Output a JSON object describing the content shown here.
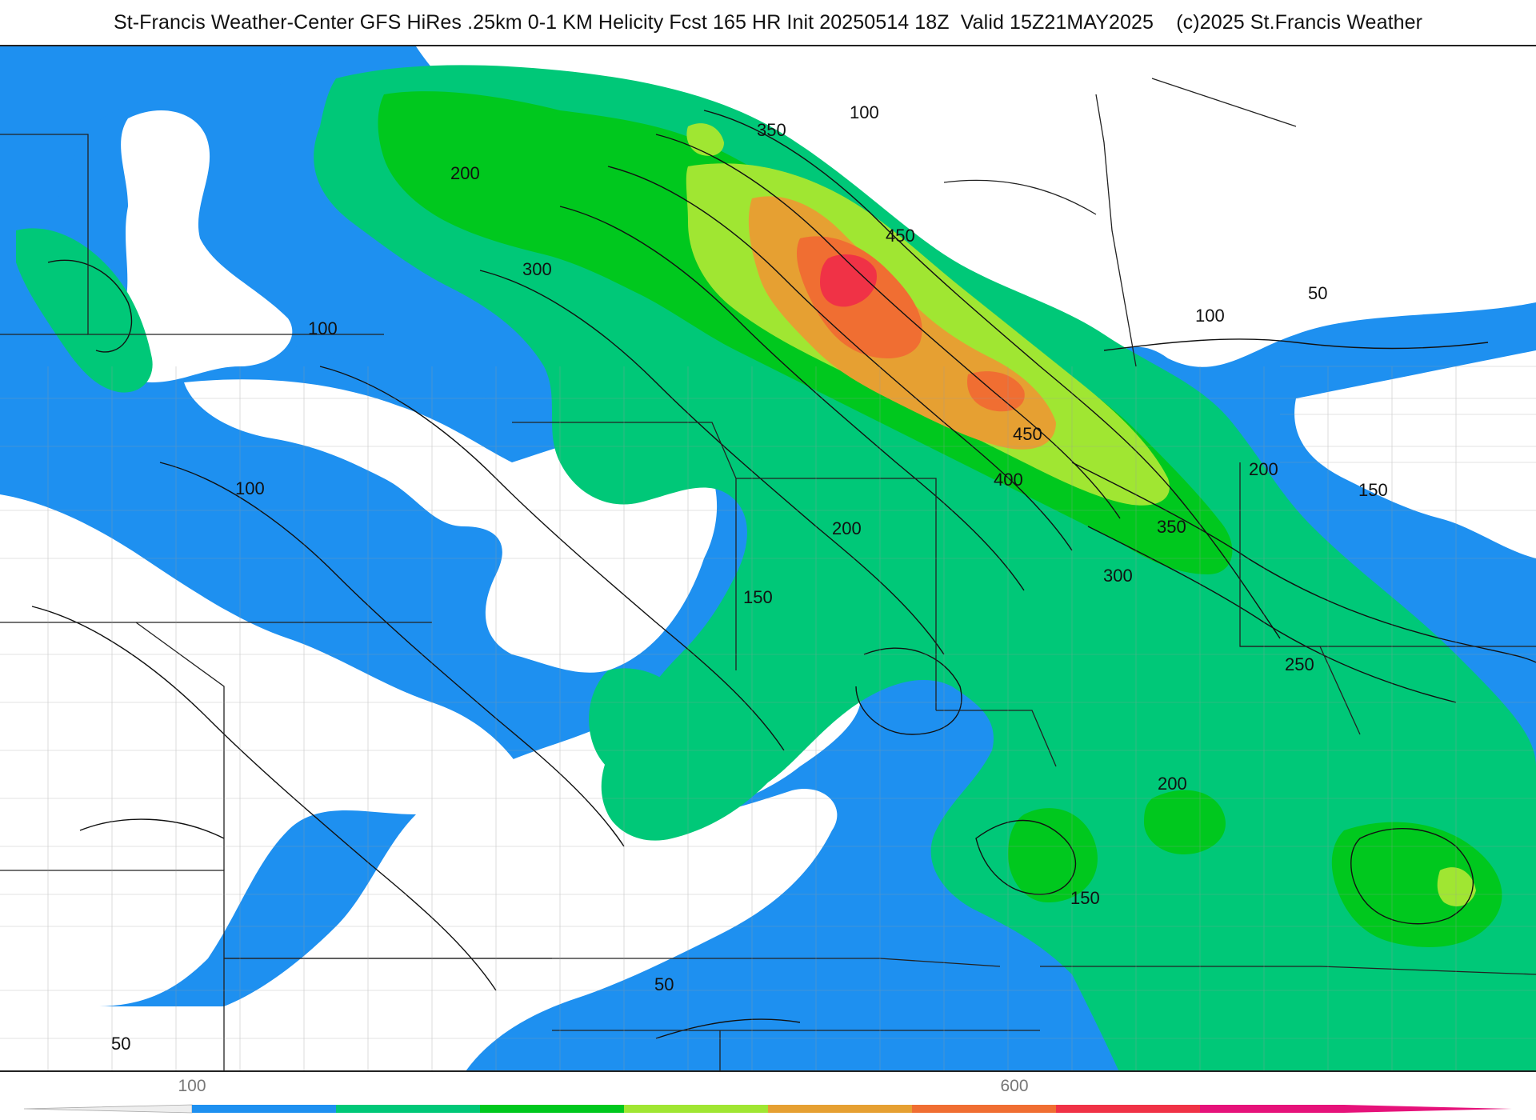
{
  "title": "St-Francis Weather-Center GFS HiRes .25km 0-1 KM Helicity Fcst 165 HR Init 20250514 18Z  Valid 15Z21MAY2025    (c)2025 St.Francis Weather",
  "map": {
    "contour_labels": [
      "350",
      "100",
      "200",
      "450",
      "300",
      "50",
      "100",
      "100",
      "450",
      "400",
      "100",
      "200",
      "150",
      "200",
      "350",
      "150",
      "300",
      "250",
      "200",
      "150",
      "50",
      "50"
    ]
  },
  "colorbar": {
    "tick_labels": [
      "100",
      "600"
    ],
    "colors": [
      "#1e90f0",
      "#00c878",
      "#00c81e",
      "#a0e632",
      "#e6a032",
      "#f06e32",
      "#f03246",
      "#e6127a"
    ]
  },
  "colors": {
    "below_100": "#ffffff",
    "100_150": "#1e90f0",
    "150_250": "#00c878",
    "250_350": "#00c81e",
    "350_450": "#a0e632",
    "450_550": "#e6a032",
    "550_650": "#f06e32",
    "650_plus": "#f03246"
  }
}
